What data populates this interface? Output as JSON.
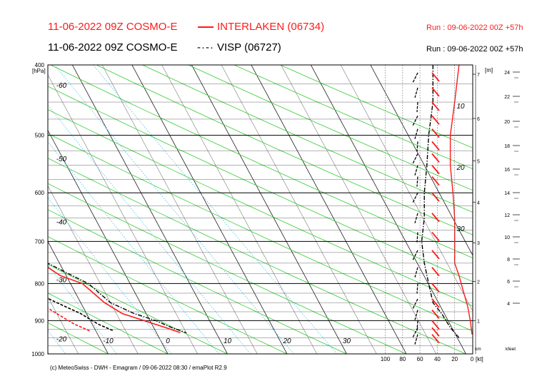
{
  "header": {
    "line1_left": "11-06-2022 09Z COSMO-E",
    "line1_station": "INTERLAKEN (06734)",
    "line1_run": "Run : 09-06-2022 00Z +57h",
    "line2_left": "11-06-2022 09Z COSMO-E",
    "line2_station": "VISP (06727)",
    "line2_run": "Run : 09-06-2022 00Z +57h",
    "line2_dash": "-·-·"
  },
  "footer": {
    "credit": "(c) MeteoSwiss - DWH - Emagram / 09-06-2022 08:30 / emaPlot R2.9"
  },
  "colors": {
    "interlaken": "#ff1a1a",
    "visp": "#000000",
    "isotherm": "#000000",
    "dry_adiabat": "#33cc33",
    "mixing_ratio": "#66ccee"
  },
  "chart_data": {
    "type": "line",
    "subtype": "emagram",
    "ylabel": "[hPa]",
    "y_ticks": [
      "400",
      "500",
      "600",
      "700",
      "800",
      "900",
      "1000"
    ],
    "ylim": [
      1000,
      400
    ],
    "temp_labels_top": [
      "-60",
      "-50",
      "-40",
      "-30",
      "-20"
    ],
    "temp_labels_left": [
      "-60",
      "-50",
      "-40",
      "-30",
      "-20"
    ],
    "temp_labels_bottom": [
      "-10",
      "0",
      "10",
      "20",
      "30"
    ],
    "inner_labels": [
      "10",
      "20",
      "30"
    ],
    "wind_axis": {
      "ticks": [
        "100",
        "80",
        "60",
        "40",
        "20",
        "0"
      ],
      "unit": "[kt]"
    },
    "km_axis": {
      "label": "[m]",
      "ticks": [
        "1",
        "2",
        "3",
        "4",
        "5",
        "6",
        "7"
      ],
      "bottom_label": "km"
    },
    "kfeet_axis": {
      "ticks": [
        "4",
        "6",
        "8",
        "10",
        "12",
        "14",
        "16",
        "18",
        "20",
        "22",
        "24"
      ],
      "bottom_label": "kfeet"
    },
    "series": [
      {
        "name": "INTERLAKEN (06734)",
        "color": "#ff1a1a",
        "temperature": [
          [
            430,
            -11.5
          ],
          [
            450,
            -11.5
          ],
          [
            500,
            -12.5
          ],
          [
            550,
            -13.5
          ],
          [
            600,
            -14
          ],
          [
            650,
            -13
          ],
          [
            700,
            -12.5
          ],
          [
            750,
            -13
          ],
          [
            780,
            -11
          ],
          [
            800,
            -8
          ],
          [
            850,
            -6
          ],
          [
            880,
            -4
          ],
          [
            900,
            -1
          ],
          [
            920,
            2
          ],
          [
            935,
            4
          ]
        ],
        "dewpoint": [
          [
            400,
            -31
          ],
          [
            450,
            -31.5
          ],
          [
            480,
            -36
          ],
          [
            500,
            -38
          ],
          [
            530,
            -38.5
          ],
          [
            560,
            -37.5
          ],
          [
            600,
            -38
          ],
          [
            650,
            -38
          ],
          [
            680,
            -37
          ],
          [
            700,
            -36
          ],
          [
            730,
            -32
          ],
          [
            760,
            -25
          ],
          [
            780,
            -24
          ],
          [
            820,
            -20
          ],
          [
            850,
            -17
          ],
          [
            880,
            -15
          ],
          [
            910,
            -13
          ],
          [
            930,
            -11
          ]
        ],
        "wind_speed": [
          [
            400,
            20
          ],
          [
            450,
            25
          ],
          [
            500,
            25
          ],
          [
            560,
            30
          ],
          [
            600,
            28
          ],
          [
            700,
            20
          ],
          [
            780,
            25
          ],
          [
            850,
            30
          ],
          [
            900,
            25
          ],
          [
            940,
            15
          ]
        ],
        "wind_speed_kt": [
          [
            400,
            15
          ],
          [
            450,
            20
          ],
          [
            500,
            25
          ],
          [
            550,
            25
          ],
          [
            600,
            22
          ],
          [
            650,
            20
          ],
          [
            700,
            20
          ],
          [
            750,
            20
          ],
          [
            780,
            15
          ],
          [
            820,
            10
          ],
          [
            860,
            5
          ],
          [
            900,
            2
          ],
          [
            940,
            0
          ]
        ]
      },
      {
        "name": "VISP (06727)",
        "color": "#000000",
        "temperature": [
          [
            430,
            -11.5
          ],
          [
            450,
            -11.5
          ],
          [
            500,
            -12.5
          ],
          [
            550,
            -13
          ],
          [
            600,
            -13.5
          ],
          [
            650,
            -12.5
          ],
          [
            700,
            -12
          ],
          [
            750,
            -12
          ],
          [
            780,
            -9
          ],
          [
            800,
            -7
          ],
          [
            850,
            -5
          ],
          [
            880,
            -2
          ],
          [
            900,
            1
          ],
          [
            920,
            3
          ],
          [
            935,
            5
          ]
        ],
        "dewpoint": [
          [
            400,
            -29
          ],
          [
            450,
            -30
          ],
          [
            480,
            -35
          ],
          [
            500,
            -37
          ],
          [
            530,
            -38
          ],
          [
            560,
            -37
          ],
          [
            600,
            -37.5
          ],
          [
            650,
            -38
          ],
          [
            680,
            -37.5
          ],
          [
            700,
            -37
          ],
          [
            730,
            -35
          ],
          [
            760,
            -28
          ],
          [
            780,
            -23
          ],
          [
            820,
            -17
          ],
          [
            850,
            -14
          ],
          [
            880,
            -11
          ],
          [
            910,
            -9
          ],
          [
            930,
            -7
          ]
        ],
        "wind_speed_kt": [
          [
            400,
            45
          ],
          [
            450,
            45
          ],
          [
            500,
            50
          ],
          [
            550,
            52
          ],
          [
            600,
            55
          ],
          [
            650,
            55
          ],
          [
            700,
            58
          ],
          [
            750,
            55
          ],
          [
            800,
            50
          ],
          [
            850,
            45
          ],
          [
            880,
            35
          ],
          [
            920,
            25
          ],
          [
            950,
            15
          ]
        ]
      }
    ]
  }
}
